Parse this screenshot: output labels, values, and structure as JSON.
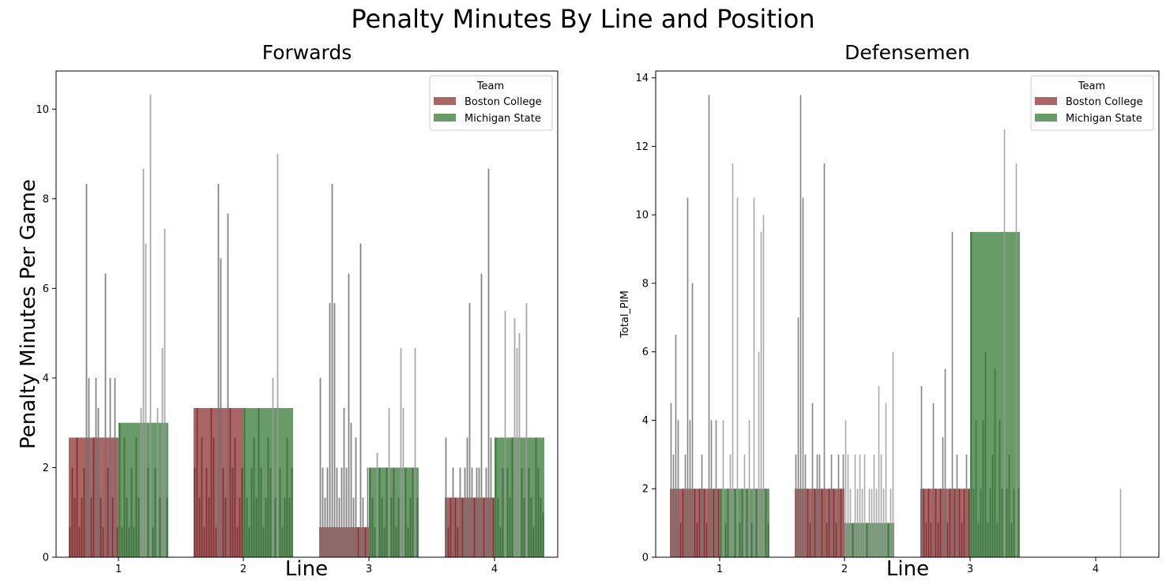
{
  "suptitle": "Penalty Minutes By Line and Position",
  "chart_data": [
    {
      "type": "bar",
      "title": "Forwards",
      "xlabel": "Line",
      "ylabel": "Penalty Minutes Per Game",
      "ylim": [
        0,
        10.85
      ],
      "yticks": [
        0,
        2,
        4,
        6,
        8,
        10
      ],
      "categories": [
        "1",
        "2",
        "3",
        "4"
      ],
      "legend": {
        "title": "Team",
        "position": "top-right"
      },
      "series": [
        {
          "name": "Boston College",
          "color": "#9e4a4a",
          "values": [
            2.67,
            3.33,
            0.67,
            1.33
          ]
        },
        {
          "name": "Michigan State",
          "color": "#4e8a4e",
          "values": [
            3.0,
            3.33,
            2.0,
            2.67
          ]
        }
      ],
      "errorbars": [
        {
          "series": 0,
          "category": 0,
          "heights": [
            0.67,
            2.0,
            1.33,
            2.67,
            0.67,
            1.33,
            2.0,
            8.33,
            4.0,
            1.33,
            2.67,
            4.0,
            3.33,
            1.33,
            0.67,
            6.33,
            2.0,
            4.0,
            1.33,
            4.0,
            0.67
          ]
        },
        {
          "series": 1,
          "category": 0,
          "heights": [
            3.0,
            0.67,
            2.67,
            1.33,
            0.67,
            2.0,
            0.67,
            2.67,
            1.33,
            3.33,
            8.67,
            7.0,
            2.0,
            10.33,
            0.67,
            2.0,
            3.33,
            1.33,
            4.67,
            7.33,
            1.33
          ]
        },
        {
          "series": 0,
          "category": 1,
          "heights": [
            2.0,
            3.33,
            1.33,
            2.67,
            0.67,
            2.0,
            1.33,
            3.33,
            2.67,
            0.67,
            8.33,
            6.67,
            2.0,
            1.33,
            7.67,
            3.33,
            2.0,
            2.67,
            0.67,
            1.33,
            2.0
          ]
        },
        {
          "series": 1,
          "category": 1,
          "heights": [
            3.33,
            1.33,
            0.67,
            2.0,
            2.67,
            1.33,
            3.33,
            2.0,
            0.67,
            1.33,
            2.67,
            2.0,
            4.0,
            1.33,
            9.0,
            2.0,
            0.67,
            1.33,
            2.67,
            1.33,
            2.0
          ]
        },
        {
          "series": 0,
          "category": 2,
          "heights": [
            4.0,
            2.0,
            1.33,
            2.0,
            5.67,
            8.33,
            5.67,
            2.0,
            1.33,
            2.0,
            3.33,
            2.0,
            6.33,
            3.0,
            1.33,
            2.67,
            0.67,
            7.0,
            1.33,
            0.67,
            2.0
          ]
        },
        {
          "series": 1,
          "category": 2,
          "heights": [
            2.0,
            1.33,
            0.67,
            2.33,
            2.0,
            1.33,
            0.67,
            2.0,
            3.33,
            1.33,
            2.0,
            0.67,
            1.33,
            4.67,
            3.33,
            2.0,
            0.67,
            1.33,
            2.0,
            4.67,
            1.33
          ]
        },
        {
          "series": 0,
          "category": 3,
          "heights": [
            2.67,
            0.67,
            1.33,
            2.0,
            1.33,
            0.67,
            2.0,
            1.33,
            2.0,
            2.67,
            5.67,
            2.0,
            1.33,
            2.0,
            2.0,
            6.33,
            1.33,
            2.0,
            8.67,
            2.67,
            1.33
          ]
        },
        {
          "series": 1,
          "category": 3,
          "heights": [
            2.67,
            1.33,
            0.67,
            2.0,
            5.5,
            2.0,
            1.33,
            2.67,
            5.33,
            4.67,
            5.0,
            2.0,
            1.33,
            5.67,
            2.0,
            1.33,
            0.67,
            2.67,
            2.0,
            1.33,
            1.0
          ]
        }
      ]
    },
    {
      "type": "bar",
      "title": "Defensemen",
      "xlabel": "Line",
      "ylabel": "Total_PIM",
      "ylim": [
        0,
        14.2
      ],
      "yticks": [
        0,
        2,
        4,
        6,
        8,
        10,
        12,
        14
      ],
      "categories": [
        "1",
        "2",
        "3",
        "4"
      ],
      "legend": {
        "title": "Team",
        "position": "top-right"
      },
      "series": [
        {
          "name": "Boston College",
          "color": "#9e4a4a",
          "values": [
            2,
            2,
            2,
            0
          ]
        },
        {
          "name": "Michigan State",
          "color": "#4e8a4e",
          "values": [
            2,
            1,
            9.5,
            0
          ]
        }
      ],
      "errorbars": [
        {
          "series": 0,
          "category": 0,
          "heights": [
            4.5,
            3.0,
            6.5,
            4.0,
            1.0,
            2.0,
            3.0,
            10.5,
            4.0,
            8.0,
            2.0,
            1.0,
            2.0,
            3.0,
            2.0,
            1.0,
            13.5,
            4.0,
            2.0,
            4.0,
            2.0
          ]
        },
        {
          "series": 1,
          "category": 0,
          "heights": [
            2.0,
            4.0,
            1.0,
            2.0,
            3.0,
            11.5,
            2.0,
            10.5,
            1.0,
            2.0,
            3.0,
            2.0,
            4.0,
            1.0,
            10.5,
            2.0,
            6.0,
            9.5,
            10.0,
            2.0,
            1.0
          ]
        },
        {
          "series": 0,
          "category": 1,
          "heights": [
            3.0,
            7.0,
            13.5,
            10.5,
            3.0,
            2.0,
            1.0,
            4.5,
            2.0,
            3.0,
            3.0,
            2.0,
            11.5,
            1.0,
            2.0,
            3.0,
            2.0,
            1.0,
            3.0,
            2.0,
            3.0
          ]
        },
        {
          "series": 1,
          "category": 1,
          "heights": [
            4.0,
            3.0,
            2.0,
            1.0,
            3.0,
            2.0,
            3.0,
            2.0,
            3.0,
            1.0,
            2.0,
            2.0,
            3.0,
            2.0,
            5.0,
            3.0,
            2.0,
            4.5,
            1.0,
            2.0,
            6.0
          ]
        },
        {
          "series": 0,
          "category": 2,
          "heights": [
            5.0,
            2.0,
            1.0,
            2.0,
            1.0,
            4.5,
            2.0,
            1.0,
            2.0,
            3.5,
            5.5,
            1.0,
            2.0,
            9.5,
            2.0,
            3.0,
            2.0,
            1.0,
            2.0,
            3.0,
            2.0
          ]
        },
        {
          "series": 1,
          "category": 2,
          "heights": [
            9.5,
            2.0,
            4.0,
            1.0,
            2.0,
            4.0,
            6.0,
            1.0,
            2.0,
            3.0,
            5.5,
            1.0,
            4.0,
            2.0,
            12.5,
            2.0,
            3.0,
            1.0,
            2.0,
            11.5,
            2.0
          ]
        },
        {
          "series": 1,
          "category": 3,
          "heights": [
            2.0
          ]
        }
      ]
    }
  ]
}
